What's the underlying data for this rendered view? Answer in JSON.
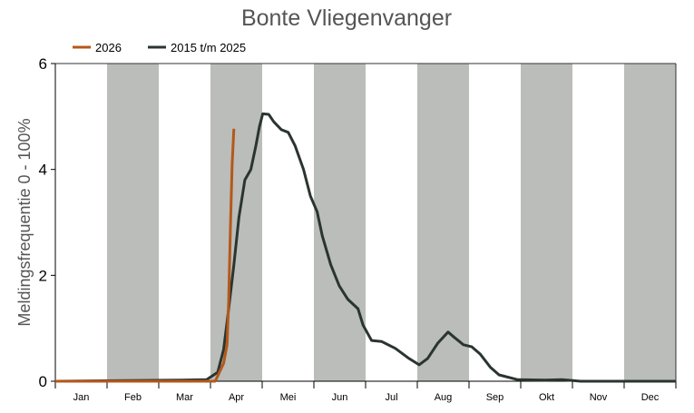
{
  "chart_data": {
    "type": "line",
    "title": "Bonte Vliegenvanger",
    "xlabel": "",
    "ylabel": "Meldingsfrequentie 0 - 100%",
    "xlim": [
      0,
      365
    ],
    "ylim": [
      0,
      6
    ],
    "yticks": [
      0,
      2,
      4,
      6
    ],
    "months": [
      "Jan",
      "Feb",
      "Mar",
      "Apr",
      "Mei",
      "Jun",
      "Jul",
      "Aug",
      "Sep",
      "Okt",
      "Nov",
      "Dec"
    ],
    "shaded_months": [
      "Feb",
      "Apr",
      "Jun",
      "Aug",
      "Okt",
      "Dec"
    ],
    "legend_position": "top-left",
    "series": [
      {
        "name": "2026",
        "color": "#b5581a",
        "x": [
          0,
          94,
          95.5,
          99,
          101,
          102,
          103,
          104,
          105
        ],
        "y": [
          0,
          0,
          0.1,
          0.34,
          0.69,
          1.54,
          2.9,
          4.1,
          4.77
        ]
      },
      {
        "name": "2015 t/m 2025",
        "color": "#2b3530",
        "x": [
          0,
          74,
          89,
          95.5,
          99,
          102,
          105,
          108,
          111.5,
          115,
          118,
          120,
          122,
          125.5,
          128.5,
          133,
          137,
          141,
          146,
          150,
          154,
          157,
          162,
          167,
          172,
          178,
          181,
          186,
          192,
          200,
          208,
          214,
          219,
          225,
          231,
          235,
          240,
          245,
          250,
          256,
          261,
          272,
          288,
          298,
          309,
          365
        ],
        "y": [
          0,
          0.02,
          0.03,
          0.17,
          0.6,
          1.37,
          2.2,
          3.1,
          3.8,
          4.0,
          4.45,
          4.8,
          5.05,
          5.04,
          4.9,
          4.75,
          4.7,
          4.45,
          4.0,
          3.5,
          3.2,
          2.75,
          2.2,
          1.8,
          1.55,
          1.37,
          1.06,
          0.77,
          0.75,
          0.62,
          0.43,
          0.31,
          0.43,
          0.72,
          0.93,
          0.82,
          0.69,
          0.65,
          0.51,
          0.26,
          0.12,
          0.03,
          0.02,
          0.03,
          0,
          0
        ]
      }
    ]
  }
}
